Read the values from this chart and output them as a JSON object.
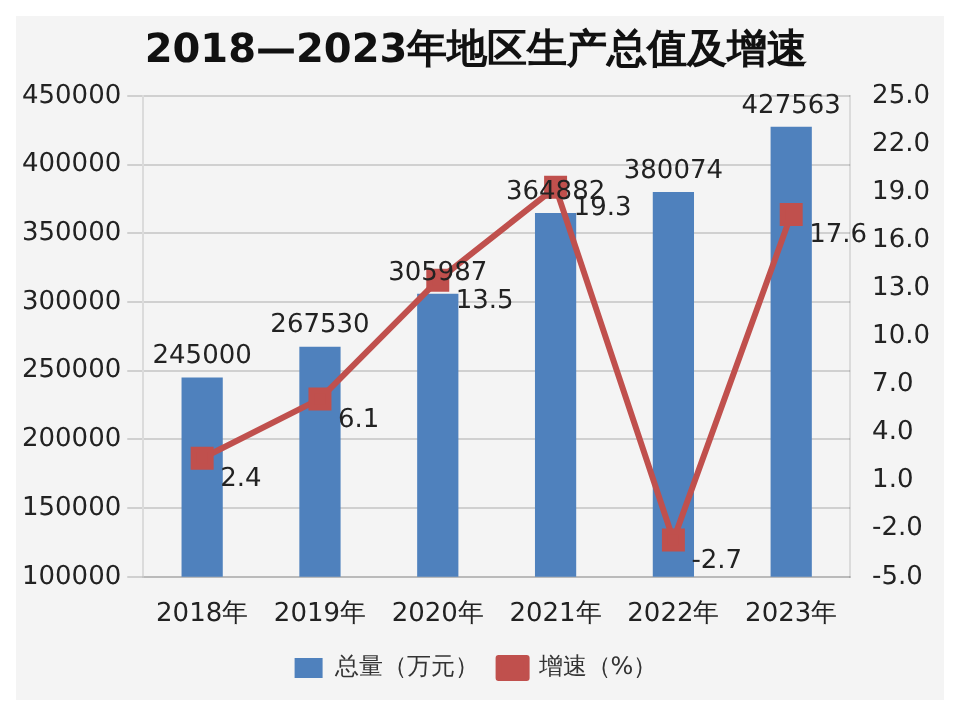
{
  "chart_data": {
    "type": "bar",
    "title": "2018—2023年地区生产总值及增速",
    "categories": [
      "2018年",
      "2019年",
      "2020年",
      "2021年",
      "2022年",
      "2023年"
    ],
    "series": [
      {
        "name": "总量（万元）",
        "color": "#4f81bd",
        "values": [
          245000,
          267530,
          305987,
          364882,
          380074,
          427563
        ]
      },
      {
        "name": "增速（%）",
        "type": "line",
        "axis": "y2",
        "color": "#c0504d",
        "values": [
          2.4,
          6.1,
          13.5,
          19.3,
          -2.7,
          17.6
        ]
      }
    ],
    "ylim": [
      100000,
      450000
    ],
    "yticks": [
      100000,
      150000,
      200000,
      250000,
      300000,
      350000,
      400000,
      450000
    ],
    "y2lim": [
      -5,
      25
    ],
    "y2ticks": [
      {
        "value": -5,
        "label": "-5.0"
      },
      {
        "value": -2,
        "label": "-2.0"
      },
      {
        "value": 1,
        "label": "1.0"
      },
      {
        "value": 4,
        "label": "4.0"
      },
      {
        "value": 7,
        "label": "7.0"
      },
      {
        "value": 10,
        "label": "10.0"
      },
      {
        "value": 13,
        "label": "13.0"
      },
      {
        "value": 16,
        "label": "16.0"
      },
      {
        "value": 19,
        "label": "19.0"
      },
      {
        "value": 22,
        "label": "22.0"
      },
      {
        "value": 25,
        "label": "25.0"
      }
    ],
    "grid": "y",
    "legend": "bottom",
    "marker": "square",
    "line_style": "solid",
    "data_labels": true
  }
}
